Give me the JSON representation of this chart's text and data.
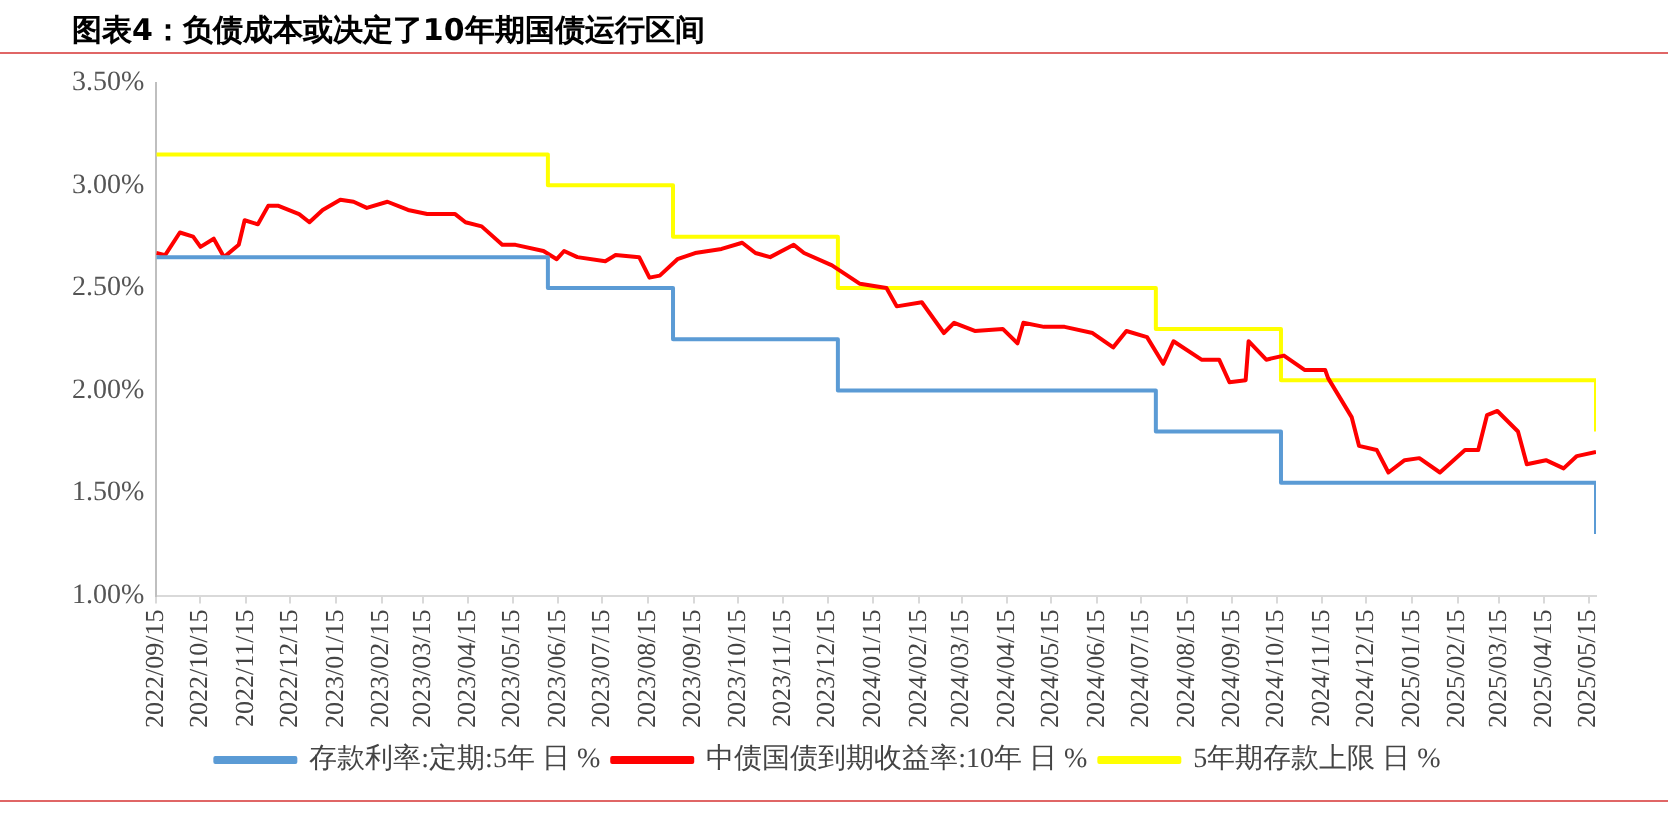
{
  "chart_data": {
    "type": "line",
    "title": "图表4：负债成本或决定了10年期国债运行区间",
    "xlim": [
      "2022-09-15",
      "2025-05-20"
    ],
    "xticks": [
      {
        "value": "2022-09-15",
        "label": "2022/09/15"
      },
      {
        "value": "2022-10-15",
        "label": "2022/10/15"
      },
      {
        "value": "2022-11-15",
        "label": "2022/11/15"
      },
      {
        "value": "2022-12-15",
        "label": "2022/12/15"
      },
      {
        "value": "2023-01-15",
        "label": "2023/01/15"
      },
      {
        "value": "2023-02-15",
        "label": "2023/02/15"
      },
      {
        "value": "2023-03-15",
        "label": "2023/03/15"
      },
      {
        "value": "2023-04-15",
        "label": "2023/04/15"
      },
      {
        "value": "2023-05-15",
        "label": "2023/05/15"
      },
      {
        "value": "2023-06-15",
        "label": "2023/06/15"
      },
      {
        "value": "2023-07-15",
        "label": "2023/07/15"
      },
      {
        "value": "2023-08-15",
        "label": "2023/08/15"
      },
      {
        "value": "2023-09-15",
        "label": "2023/09/15"
      },
      {
        "value": "2023-10-15",
        "label": "2023/10/15"
      },
      {
        "value": "2023-11-15",
        "label": "2023/11/15"
      },
      {
        "value": "2023-12-15",
        "label": "2023/12/15"
      },
      {
        "value": "2024-01-15",
        "label": "2024/01/15"
      },
      {
        "value": "2024-02-15",
        "label": "2024/02/15"
      },
      {
        "value": "2024-03-15",
        "label": "2024/03/15"
      },
      {
        "value": "2024-04-15",
        "label": "2024/04/15"
      },
      {
        "value": "2024-05-15",
        "label": "2024/05/15"
      },
      {
        "value": "2024-06-15",
        "label": "2024/06/15"
      },
      {
        "value": "2024-07-15",
        "label": "2024/07/15"
      },
      {
        "value": "2024-08-15",
        "label": "2024/08/15"
      },
      {
        "value": "2024-09-15",
        "label": "2024/09/15"
      },
      {
        "value": "2024-10-15",
        "label": "2024/10/15"
      },
      {
        "value": "2024-11-15",
        "label": "2024/11/15"
      },
      {
        "value": "2024-12-15",
        "label": "2024/12/15"
      },
      {
        "value": "2025-01-15",
        "label": "2025/01/15"
      },
      {
        "value": "2025-02-15",
        "label": "2025/02/15"
      },
      {
        "value": "2025-03-15",
        "label": "2025/03/15"
      },
      {
        "value": "2025-04-15",
        "label": "2025/04/15"
      },
      {
        "value": "2025-05-15",
        "label": "2025/05/15"
      }
    ],
    "ylim": [
      1,
      3.5
    ],
    "yticks": [
      {
        "value": 1,
        "label": "1.00%"
      },
      {
        "value": 1.5,
        "label": "1.50%"
      },
      {
        "value": 2,
        "label": "2.00%"
      },
      {
        "value": 2.5,
        "label": "2.50%"
      },
      {
        "value": 3,
        "label": "3.00%"
      },
      {
        "value": 3.5,
        "label": "3.50%"
      }
    ],
    "grid": false,
    "legend": "bottom",
    "marker": "none",
    "line_style": "solid",
    "series": [
      {
        "name": "存款利率:定期:5年 日 %",
        "type": "step",
        "color": "#5b9bd5",
        "x": [
          "2022-09-15",
          "2023-06-08",
          "2023-09-01",
          "2023-12-22",
          "2024-07-25",
          "2024-10-18",
          "2025-05-20"
        ],
        "values": [
          2.65,
          2.5,
          2.25,
          2.0,
          1.8,
          1.55,
          1.3
        ]
      },
      {
        "name": "中债国债到期收益率:10年 日 %",
        "type": "line",
        "color": "#ff0000",
        "x": [
          "2022-09-15",
          "2022-09-21",
          "2022-10-01",
          "2022-10-10",
          "2022-10-15",
          "2022-10-24",
          "2022-10-31",
          "2022-11-10",
          "2022-11-14",
          "2022-11-23",
          "2022-11-30",
          "2022-12-07",
          "2022-12-21",
          "2022-12-28",
          "2023-01-06",
          "2023-01-18",
          "2023-01-27",
          "2023-02-05",
          "2023-02-19",
          "2023-03-05",
          "2023-03-18",
          "2023-04-06",
          "2023-04-13",
          "2023-04-24",
          "2023-05-08",
          "2023-05-17",
          "2023-06-05",
          "2023-06-14",
          "2023-06-19",
          "2023-06-28",
          "2023-07-17",
          "2023-07-24",
          "2023-08-09",
          "2023-08-16",
          "2023-08-23",
          "2023-09-04",
          "2023-09-16",
          "2023-10-04",
          "2023-10-18",
          "2023-10-27",
          "2023-11-06",
          "2023-11-22",
          "2023-11-29",
          "2023-12-18",
          "2024-01-06",
          "2024-01-24",
          "2024-01-31",
          "2024-02-17",
          "2024-03-03",
          "2024-03-10",
          "2024-03-24",
          "2024-04-12",
          "2024-04-22",
          "2024-04-26",
          "2024-05-10",
          "2024-05-24",
          "2024-06-12",
          "2024-06-26",
          "2024-07-05",
          "2024-07-19",
          "2024-07-30",
          "2024-08-06",
          "2024-08-25",
          "2024-09-06",
          "2024-09-13",
          "2024-09-24",
          "2024-09-26",
          "2024-10-08",
          "2024-10-20",
          "2024-11-03",
          "2024-11-17",
          "2024-11-19",
          "2024-12-05",
          "2024-12-10",
          "2024-12-22",
          "2024-12-30",
          "2025-01-10",
          "2025-01-20",
          "2025-02-03",
          "2025-02-20",
          "2025-03-01",
          "2025-03-07",
          "2025-03-14",
          "2025-03-28",
          "2025-04-03",
          "2025-04-16",
          "2025-04-28",
          "2025-05-07",
          "2025-05-20"
        ],
        "values": [
          2.67,
          2.66,
          2.77,
          2.75,
          2.7,
          2.74,
          2.65,
          2.71,
          2.83,
          2.81,
          2.9,
          2.9,
          2.86,
          2.82,
          2.88,
          2.93,
          2.92,
          2.89,
          2.92,
          2.88,
          2.86,
          2.86,
          2.82,
          2.8,
          2.71,
          2.71,
          2.68,
          2.64,
          2.68,
          2.65,
          2.63,
          2.66,
          2.65,
          2.55,
          2.56,
          2.64,
          2.67,
          2.69,
          2.72,
          2.67,
          2.65,
          2.71,
          2.67,
          2.61,
          2.52,
          2.5,
          2.41,
          2.43,
          2.28,
          2.33,
          2.29,
          2.3,
          2.23,
          2.33,
          2.31,
          2.31,
          2.28,
          2.21,
          2.29,
          2.26,
          2.13,
          2.24,
          2.15,
          2.15,
          2.04,
          2.05,
          2.24,
          2.15,
          2.17,
          2.1,
          2.1,
          2.06,
          1.87,
          1.73,
          1.71,
          1.6,
          1.66,
          1.67,
          1.6,
          1.71,
          1.71,
          1.88,
          1.9,
          1.8,
          1.64,
          1.66,
          1.62,
          1.68,
          1.7
        ]
      },
      {
        "name": "5年期存款上限 日 %",
        "type": "step",
        "color": "#ffff00",
        "x": [
          "2022-09-15",
          "2023-06-08",
          "2023-09-01",
          "2023-12-22",
          "2024-07-25",
          "2024-10-18",
          "2025-05-20"
        ],
        "values": [
          3.15,
          3.0,
          2.75,
          2.5,
          2.3,
          2.05,
          1.8
        ]
      }
    ]
  }
}
